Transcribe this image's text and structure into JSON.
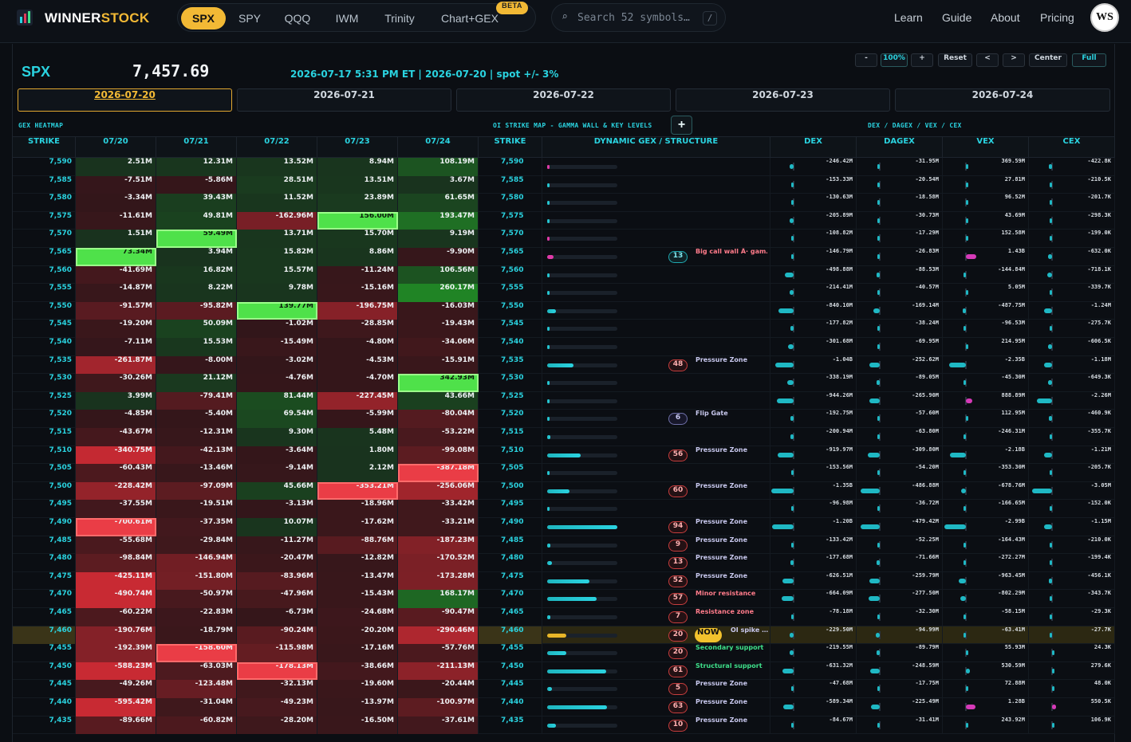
{
  "brand": {
    "name_a": "WINNER",
    "name_b": "STOCK",
    "accent": "#f2b935",
    "cyan": "#2ad3e0"
  },
  "nav": {
    "tabs": [
      "SPX",
      "SPY",
      "QQQ",
      "IWM",
      "Trinity",
      "Chart+GEX"
    ],
    "active_tab": "SPX",
    "beta": "BETA",
    "search_placeholder": "Search 52 symbols…",
    "search_key": "/",
    "links": [
      "Learn",
      "Guide",
      "About",
      "Pricing"
    ],
    "avatar": "WS"
  },
  "header": {
    "symbol": "SPX",
    "spot": "7,457.69",
    "meta": "2026-07-17 5:31 PM ET | 2026-07-20 | spot +/- 3%"
  },
  "controls": {
    "minus": "-",
    "zoom": "100%",
    "plus": "+",
    "reset": "Reset",
    "prev": "<",
    "next": ">",
    "center": "Center",
    "full": "Full"
  },
  "date_tabs": [
    "2026-07-20",
    "2026-07-21",
    "2026-07-22",
    "2026-07-23",
    "2026-07-24"
  ],
  "sections": {
    "left": "GEX HEATMAP",
    "mid": "OI STRIKE MAP - GAMMA WALL & KEY LEVELS",
    "right": "DEX / DAGEX / VEX / CEX",
    "add": "+"
  },
  "columns": {
    "heat": [
      "STRIKE",
      "07/20",
      "07/21",
      "07/22",
      "07/23",
      "07/24"
    ],
    "strike": "STRIKE",
    "dyn": "DYNAMIC GEX / STRUCTURE",
    "greeks": [
      "DEX",
      "DAGEX",
      "VEX",
      "CEX"
    ]
  },
  "rows": [
    {
      "strike": "7,590",
      "h": [
        "2.51M",
        "12.31M",
        "13.52M",
        "8.94M",
        "108.19M"
      ],
      "bar": 0.02,
      "bc": "pink",
      "g": [
        "-246.42M",
        "-31.95M",
        "369.59M",
        "-422.8K"
      ]
    },
    {
      "strike": "7,585",
      "h": [
        "-7.51M",
        "-5.86M",
        "28.51M",
        "13.51M",
        "3.67M"
      ],
      "bar": 0.01,
      "bc": "cyan",
      "g": [
        "-153.33M",
        "-20.54M",
        "27.81M",
        "-210.5K"
      ]
    },
    {
      "strike": "7,580",
      "h": [
        "-3.34M",
        "39.43M",
        "11.52M",
        "23.89M",
        "61.65M"
      ],
      "bar": 0.01,
      "bc": "cyan",
      "g": [
        "-130.63M",
        "-18.58M",
        "96.52M",
        "-201.7K"
      ]
    },
    {
      "strike": "7,575",
      "h": [
        "-11.61M",
        "49.81M",
        "-162.96M",
        "156.00M",
        "193.47M"
      ],
      "bar": 0.01,
      "bc": "cyan",
      "g": [
        "-205.89M",
        "-30.73M",
        "43.69M",
        "-298.3K"
      ]
    },
    {
      "strike": "7,570",
      "h": [
        "1.51M",
        "59.49M",
        "13.71M",
        "15.70M",
        "9.19M"
      ],
      "bar": 0.01,
      "bc": "pink",
      "g": [
        "-108.82M",
        "-17.29M",
        "152.58M",
        "-199.0K"
      ]
    },
    {
      "strike": "7,565",
      "h": [
        "73.34M",
        "3.94M",
        "15.82M",
        "8.86M",
        "-9.90M"
      ],
      "bar": 0.09,
      "bc": "pink",
      "badge": "13",
      "bk": "cy",
      "label": "Big call wall Â· gam…",
      "lk": "",
      "g": [
        "-146.79M",
        "-26.83M",
        "1.43B",
        "-632.0K"
      ]
    },
    {
      "strike": "7,560",
      "h": [
        "-41.69M",
        "16.82M",
        "15.57M",
        "-11.24M",
        "106.56M"
      ],
      "bar": 0.02,
      "bc": "cyan",
      "g": [
        "-498.88M",
        "-88.53M",
        "-144.84M",
        "-718.1K"
      ]
    },
    {
      "strike": "7,555",
      "h": [
        "-14.87M",
        "8.22M",
        "9.78M",
        "-15.16M",
        "260.17M"
      ],
      "bar": 0.01,
      "bc": "cyan",
      "g": [
        "-214.41M",
        "-40.57M",
        "5.05M",
        "-339.7K"
      ]
    },
    {
      "strike": "7,550",
      "h": [
        "-91.57M",
        "-95.82M",
        "139.77M",
        "-196.75M",
        "-16.03M"
      ],
      "bar": 0.12,
      "bc": "cyan",
      "g": [
        "-840.10M",
        "-169.14M",
        "-487.75M",
        "-1.24M"
      ]
    },
    {
      "strike": "7,545",
      "h": [
        "-19.20M",
        "50.09M",
        "-1.02M",
        "-28.85M",
        "-19.43M"
      ],
      "bar": 0.02,
      "bc": "cyan",
      "g": [
        "-177.82M",
        "-38.24M",
        "-96.53M",
        "-275.7K"
      ]
    },
    {
      "strike": "7,540",
      "h": [
        "-7.11M",
        "15.53M",
        "-15.49M",
        "-4.80M",
        "-34.06M"
      ],
      "bar": 0.03,
      "bc": "cyan",
      "g": [
        "-301.68M",
        "-69.95M",
        "214.95M",
        "-606.5K"
      ]
    },
    {
      "strike": "7,535",
      "h": [
        "-261.87M",
        "-8.00M",
        "-3.02M",
        "-4.53M",
        "-15.91M"
      ],
      "bar": 0.38,
      "bc": "cyan",
      "badge": "48",
      "bk": "",
      "label": "Pressure Zone",
      "lk": "pu",
      "g": [
        "-1.04B",
        "-252.62M",
        "-2.35B",
        "-1.18M"
      ]
    },
    {
      "strike": "7,530",
      "h": [
        "-30.26M",
        "21.12M",
        "-4.76M",
        "-4.70M",
        "342.93M"
      ],
      "bar": 0.02,
      "bc": "cyan",
      "g": [
        "-338.19M",
        "-89.05M",
        "-45.30M",
        "-649.3K"
      ]
    },
    {
      "strike": "7,525",
      "h": [
        "3.99M",
        "-79.41M",
        "81.44M",
        "-227.45M",
        "43.66M"
      ],
      "bar": 0.02,
      "bc": "cyan",
      "g": [
        "-944.26M",
        "-265.90M",
        "888.89M",
        "-2.26M"
      ]
    },
    {
      "strike": "7,520",
      "h": [
        "-4.85M",
        "-5.40M",
        "69.54M",
        "-5.99M",
        "-80.04M"
      ],
      "bar": 0.01,
      "bc": "cyan",
      "badge": "6",
      "bk": "pu",
      "label": "Flip Gate",
      "lk": "pu",
      "g": [
        "-192.75M",
        "-57.60M",
        "112.95M",
        "-460.9K"
      ]
    },
    {
      "strike": "7,515",
      "h": [
        "-43.67M",
        "-12.31M",
        "9.30M",
        "5.48M",
        "-53.22M"
      ],
      "bar": 0.05,
      "bc": "cyan",
      "g": [
        "-200.94M",
        "-63.80M",
        "-246.31M",
        "-355.7K"
      ]
    },
    {
      "strike": "7,510",
      "h": [
        "-340.75M",
        "-42.13M",
        "-3.64M",
        "1.80M",
        "-99.08M"
      ],
      "bar": 0.48,
      "bc": "cyan",
      "badge": "56",
      "bk": "",
      "label": "Pressure Zone",
      "lk": "pu",
      "g": [
        "-919.97M",
        "-309.80M",
        "-2.18B",
        "-1.21M"
      ]
    },
    {
      "strike": "7,505",
      "h": [
        "-60.43M",
        "-13.46M",
        "-9.14M",
        "2.12M",
        "-387.18M"
      ],
      "bar": 0.03,
      "bc": "cyan",
      "g": [
        "-153.56M",
        "-54.20M",
        "-353.30M",
        "-205.7K"
      ]
    },
    {
      "strike": "7,500",
      "h": [
        "-228.42M",
        "-97.09M",
        "45.66M",
        "-353.21M",
        "-256.06M"
      ],
      "bar": 0.32,
      "bc": "cyan",
      "badge": "60",
      "bk": "",
      "label": "Pressure Zone",
      "lk": "pu",
      "g": [
        "-1.35B",
        "-486.88M",
        "-678.76M",
        "-3.05M"
      ]
    },
    {
      "strike": "7,495",
      "h": [
        "-37.55M",
        "-19.51M",
        "-3.13M",
        "-18.96M",
        "-33.42M"
      ],
      "bar": 0.03,
      "bc": "cyan",
      "g": [
        "-96.98M",
        "-36.72M",
        "-166.65M",
        "-152.0K"
      ]
    },
    {
      "strike": "7,490",
      "h": [
        "-700.61M",
        "-37.35M",
        "10.07M",
        "-17.62M",
        "-33.21M"
      ],
      "bar": 1.0,
      "bc": "cyan",
      "badge": "94",
      "bk": "",
      "label": "Pressure Zone",
      "lk": "pu",
      "g": [
        "-1.20B",
        "-479.42M",
        "-2.99B",
        "-1.15M"
      ]
    },
    {
      "strike": "7,485",
      "h": [
        "-55.68M",
        "-29.84M",
        "-11.27M",
        "-88.76M",
        "-187.23M"
      ],
      "bar": 0.05,
      "bc": "cyan",
      "badge": "9",
      "bk": "",
      "label": "Pressure Zone",
      "lk": "pu",
      "g": [
        "-133.42M",
        "-52.25M",
        "-164.43M",
        "-210.0K"
      ]
    },
    {
      "strike": "7,480",
      "h": [
        "-98.84M",
        "-146.94M",
        "-20.47M",
        "-12.82M",
        "-170.52M"
      ],
      "bar": 0.07,
      "bc": "cyan",
      "badge": "13",
      "bk": "",
      "label": "Pressure Zone",
      "lk": "pu",
      "g": [
        "-177.68M",
        "-71.66M",
        "-272.27M",
        "-199.4K"
      ]
    },
    {
      "strike": "7,475",
      "h": [
        "-425.11M",
        "-151.80M",
        "-83.96M",
        "-13.47M",
        "-173.28M"
      ],
      "bar": 0.6,
      "bc": "cyan",
      "badge": "52",
      "bk": "",
      "label": "Pressure Zone",
      "lk": "pu",
      "g": [
        "-626.51M",
        "-259.79M",
        "-963.45M",
        "-456.1K"
      ]
    },
    {
      "strike": "7,470",
      "h": [
        "-490.74M",
        "-50.97M",
        "-47.96M",
        "-15.43M",
        "168.17M"
      ],
      "bar": 0.7,
      "bc": "cyan",
      "badge": "57",
      "bk": "",
      "label": "Minor resistance",
      "lk": "",
      "g": [
        "-664.09M",
        "-277.50M",
        "-802.29M",
        "-343.7K"
      ]
    },
    {
      "strike": "7,465",
      "h": [
        "-60.22M",
        "-22.83M",
        "-6.73M",
        "-24.68M",
        "-90.47M"
      ],
      "bar": 0.05,
      "bc": "cyan",
      "badge": "7",
      "bk": "",
      "label": "Resistance zone",
      "lk": "",
      "g": [
        "-78.18M",
        "-32.30M",
        "-58.15M",
        "-29.3K"
      ]
    },
    {
      "strike": "7,460",
      "h": [
        "-190.76M",
        "-18.79M",
        "-90.24M",
        "-20.20M",
        "-290.46M"
      ],
      "bar": 0.27,
      "bc": "gold",
      "badge": "20",
      "bk": "",
      "now": "NOW",
      "label": "OI spike …",
      "lk": "pu",
      "g": [
        "-229.50M",
        "-94.99M",
        "-63.41M",
        "-27.7K"
      ],
      "hl": true
    },
    {
      "strike": "7,455",
      "h": [
        "-192.39M",
        "-158.60M",
        "-115.98M",
        "-17.16M",
        "-57.76M"
      ],
      "bar": 0.27,
      "bc": "cyan",
      "badge": "20",
      "bk": "",
      "label": "Secondary support",
      "lk": "gr",
      "g": [
        "-219.55M",
        "-89.79M",
        "55.93M",
        "24.3K"
      ]
    },
    {
      "strike": "7,450",
      "h": [
        "-588.23M",
        "-63.03M",
        "-178.13M",
        "-38.66M",
        "-211.13M"
      ],
      "bar": 0.84,
      "bc": "cyan",
      "badge": "61",
      "bk": "",
      "label": "Structural support",
      "lk": "gr",
      "g": [
        "-631.32M",
        "-248.59M",
        "530.59M",
        "279.6K"
      ]
    },
    {
      "strike": "7,445",
      "h": [
        "-49.26M",
        "-123.48M",
        "-32.13M",
        "-19.60M",
        "-20.44M"
      ],
      "bar": 0.07,
      "bc": "cyan",
      "badge": "5",
      "bk": "",
      "label": "Pressure Zone",
      "lk": "pu",
      "g": [
        "-47.68M",
        "-17.75M",
        "72.88M",
        "48.0K"
      ]
    },
    {
      "strike": "7,440",
      "h": [
        "-595.42M",
        "-31.04M",
        "-49.23M",
        "-13.97M",
        "-100.97M"
      ],
      "bar": 0.85,
      "bc": "cyan",
      "badge": "63",
      "bk": "",
      "label": "Pressure Zone",
      "lk": "pu",
      "g": [
        "-589.34M",
        "-225.49M",
        "1.28B",
        "550.5K"
      ]
    },
    {
      "strike": "7,435",
      "h": [
        "-89.66M",
        "-60.82M",
        "-28.20M",
        "-16.50M",
        "-37.61M"
      ],
      "bar": 0.12,
      "bc": "cyan",
      "badge": "10",
      "bk": "",
      "label": "Pressure Zone",
      "lk": "pu",
      "g": [
        "-84.67M",
        "-31.41M",
        "243.92M",
        "106.9K"
      ]
    }
  ]
}
